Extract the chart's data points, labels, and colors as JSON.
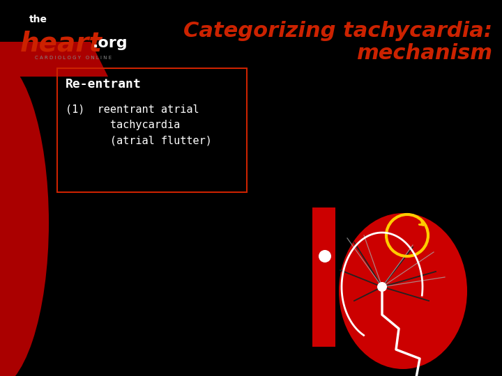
{
  "bg_color": "#000000",
  "title_line1": "Categorizing tachycardia:",
  "title_line2": "mechanism",
  "title_color": "#cc2200",
  "title_fontsize": 22,
  "box_text_header": "Re-entrant",
  "box_text_body": "(1)  reentrant atrial\n       tachycardia\n       (atrial flutter)",
  "box_color": "#cc2200",
  "text_color": "#ffffff",
  "logo_the_color": "#ffffff",
  "logo_heart_color": "#cc2200",
  "logo_org_color": "#ffffff",
  "logo_sub_color": "#888888",
  "red_left_arc_color": "#aa0000",
  "diagram_red_color": "#cc0000",
  "diagram_yellow_color": "#ffcc00",
  "diagram_white_color": "#ffffff",
  "diagram_black_color": "#000000"
}
